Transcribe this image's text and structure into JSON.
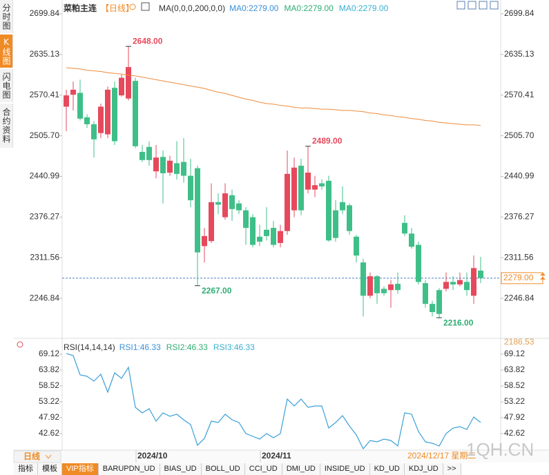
{
  "sidebar": [
    "分时图",
    "K线图",
    "闪电图",
    "合约资料"
  ],
  "header": {
    "title": "菜粕主连",
    "period": "【日线】",
    "ma_label": "MA(0,0,0,200,0,0)",
    "ma_values": [
      {
        "text": "MA0:2279.00",
        "color": "#3a8fd9"
      },
      {
        "text": "MA0:2279.00",
        "color": "#2fae73"
      },
      {
        "text": "MA0:2279.00",
        "color": "#3bb0d0"
      }
    ]
  },
  "chart_data": [
    {
      "type": "candlestick",
      "up_color": "#e6495c",
      "down_color": "#3fbf88",
      "categories": [
        null,
        null,
        null,
        null,
        null,
        null,
        null,
        null,
        null,
        null,
        "2024/10",
        null,
        null,
        null,
        null,
        null,
        null,
        null,
        null,
        null,
        null,
        null,
        null,
        null,
        null,
        null,
        null,
        null,
        "2024/11",
        null,
        null,
        null,
        null,
        null,
        null,
        null,
        null,
        null,
        null,
        null,
        null,
        null,
        null,
        null,
        null,
        null,
        null,
        null,
        null,
        null,
        null,
        null,
        null,
        null,
        null,
        null,
        null,
        null,
        null,
        null,
        null
      ],
      "open": [
        2552,
        2571,
        2574,
        2535,
        2524,
        2510,
        2508,
        2582,
        2570,
        2565,
        2593,
        2480,
        2488,
        2449,
        2472,
        2447,
        2462,
        2464,
        2442,
        2454,
        2330,
        2338,
        2400,
        2376,
        2411,
        2398,
        2387,
        2376,
        2345,
        2356,
        2359,
        2335,
        2354,
        2387,
        2458,
        2420,
        2420,
        2430,
        2434,
        2387,
        2400,
        2395,
        2345,
        2304,
        2251,
        2282,
        2262,
        2260,
        2270,
        2367,
        2350,
        2332,
        2271,
        2238,
        2260,
        2262,
        2273,
        2269,
        2273,
        2251,
        2291
      ],
      "high": [
        2579,
        2592,
        2595,
        2540,
        2529,
        2557,
        2584,
        2592,
        2603,
        2648,
        2598,
        2491,
        2497,
        2491,
        2482,
        2474,
        2497,
        2502,
        2469,
        2458,
        2359,
        2430,
        2414,
        2430,
        2420,
        2403,
        2392,
        2381,
        2364,
        2392,
        2370,
        2364,
        2482,
        2471,
        2469,
        2489,
        2442,
        2436,
        2442,
        2403,
        2425,
        2398,
        2348,
        2310,
        2288,
        2284,
        2266,
        2276,
        2288,
        2379,
        2359,
        2337,
        2276,
        2243,
        2263,
        2288,
        2282,
        2288,
        2288,
        2315,
        2313
      ],
      "low": [
        2513,
        2546,
        2530,
        2518,
        2471,
        2502,
        2502,
        2491,
        2568,
        2562,
        2486,
        2464,
        2458,
        2438,
        2398,
        2442,
        2436,
        2431,
        2392,
        2267,
        2304,
        2335,
        2381,
        2372,
        2370,
        2381,
        2332,
        2328,
        2330,
        2339,
        2328,
        2328,
        2348,
        2376,
        2379,
        2414,
        2408,
        2420,
        2337,
        2337,
        2381,
        2348,
        2304,
        2218,
        2247,
        2238,
        2251,
        2232,
        2254,
        2346,
        2326,
        2269,
        2232,
        2218,
        2216,
        2258,
        2260,
        2266,
        2251,
        2238,
        2271
      ],
      "close": [
        2570,
        2579,
        2533,
        2524,
        2500,
        2552,
        2579,
        2497,
        2598,
        2615,
        2489,
        2467,
        2467,
        2471,
        2446,
        2466,
        2445,
        2442,
        2403,
        2320,
        2346,
        2400,
        2396,
        2414,
        2389,
        2387,
        2359,
        2332,
        2337,
        2346,
        2332,
        2354,
        2445,
        2455,
        2387,
        2447,
        2427,
        2425,
        2339,
        2343,
        2387,
        2354,
        2315,
        2251,
        2282,
        2255,
        2255,
        2269,
        2260,
        2350,
        2329,
        2273,
        2238,
        2225,
        2222,
        2273,
        2269,
        2276,
        2260,
        2295,
        2279
      ],
      "ma": {
        "color": "#ee8a3a",
        "values": [
          2614,
          2613,
          2612,
          2610,
          2609,
          2608,
          2606,
          2605,
          2604,
          2602,
          2601,
          2599,
          2597,
          2595,
          2593,
          2591,
          2589,
          2587,
          2585,
          2583,
          2581,
          2578,
          2575,
          2573,
          2570,
          2567,
          2564,
          2562,
          2559,
          2557,
          2556,
          2554,
          2553,
          2551,
          2550,
          2550,
          2549,
          2548,
          2548,
          2547,
          2546,
          2546,
          2545,
          2544,
          2542,
          2541,
          2539,
          2538,
          2536,
          2535,
          2533,
          2532,
          2530,
          2529,
          2527,
          2526,
          2525,
          2524,
          2523,
          2523,
          2522
        ]
      },
      "annotations": [
        {
          "x": 9,
          "value": 2648,
          "label": "2648.00",
          "color": "#e6495c"
        },
        {
          "x": 35,
          "value": 2489,
          "label": "2489.00",
          "color": "#e6495c"
        },
        {
          "x": 19,
          "value": 2267,
          "label": "2267.00",
          "color": "#2fae73"
        },
        {
          "x": 54,
          "value": 2216,
          "label": "2216.00",
          "color": "#2fae73"
        }
      ],
      "last_price": {
        "value": 2279,
        "label": "2279.00",
        "color": "#f08a24"
      },
      "ylim": [
        2186.53,
        2699.84
      ],
      "yticks": [
        2699.84,
        2635.13,
        2570.41,
        {
          "value": 2505.7,
          "label": "2505.70"
        },
        2440.99,
        2376.27,
        2311.56,
        2246.84
      ],
      "cursor_date": "2024/12/17 星期二",
      "period_tab": "日线"
    },
    {
      "type": "line",
      "title": "RSI(14,14,14)",
      "legend": [
        {
          "text": "RSI1:46.33",
          "color": "#3a8fd9"
        },
        {
          "text": "RSI2:46.33",
          "color": "#2fae73"
        },
        {
          "text": "RSI3:46.33",
          "color": "#3bb0d0"
        }
      ],
      "color": "#3a9fd8",
      "values": [
        69.35,
        68.66,
        62.21,
        61.75,
        60.13,
        62.44,
        56.45,
        62.9,
        61.06,
        64.74,
        51.38,
        49.54,
        50.92,
        46.77,
        49.54,
        48.38,
        49.08,
        47.23,
        45.62,
        38.71,
        41.01,
        46.77,
        46.31,
        49.08,
        47.23,
        46.31,
        42.62,
        41.7,
        40.78,
        42.62,
        41.24,
        42.62,
        54.14,
        51.84,
        54.14,
        51.38,
        51.84,
        51.84,
        44.46,
        46.31,
        48.61,
        45.16,
        42.16,
        37.55,
        40.32,
        39.86,
        40.78,
        40.32,
        38.48,
        49.54,
        49.08,
        43.32,
        39.86,
        39.4,
        38.48,
        42.62,
        44.46,
        44.93,
        44,
        48.15,
        46.33
      ],
      "ylim": [
        37.09,
        72.12
      ],
      "yticks": [
        69.12,
        63.82,
        58.52,
        53.22,
        47.92,
        42.62
      ]
    }
  ],
  "toolbar": [
    "指标",
    "模板",
    "VIP指标",
    "BARUPDN_UD",
    "BIAS_UD",
    "BOLL_UD",
    "CCI_UD",
    "DMI_UD",
    "INSIDE_UD",
    "KD_UD",
    "KDJ_UD",
    ">>"
  ],
  "watermark": "1QH.CN"
}
